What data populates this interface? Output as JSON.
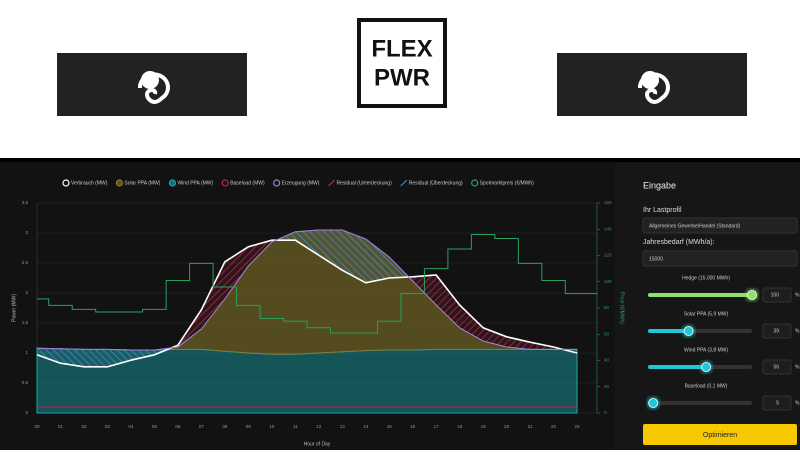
{
  "header": {
    "logo_lines": [
      "FLEX",
      "PWR"
    ]
  },
  "chart_data": {
    "type": "line",
    "x_label": "Hour of Day",
    "y_label": "Power (MW)",
    "y2_label": "Price (€/MWh)",
    "categories": [
      "00",
      "01",
      "02",
      "03",
      "04",
      "05",
      "06",
      "07",
      "08",
      "09",
      "10",
      "11",
      "12",
      "13",
      "14",
      "15",
      "16",
      "17",
      "18",
      "19",
      "20",
      "21",
      "22",
      "23"
    ],
    "ylim": [
      0,
      3.5
    ],
    "yticks": [
      0,
      {
        "value": 0.5,
        "label": "0,5"
      },
      1,
      {
        "value": 1.5,
        "label": "1,5"
      },
      2,
      {
        "value": 2.5,
        "label": "2,5"
      },
      3,
      {
        "value": 3.5,
        "label": "3,5"
      }
    ],
    "y2lim": [
      0,
      160
    ],
    "y2ticks": [
      0,
      20,
      40,
      60,
      80,
      100,
      120,
      140,
      160
    ],
    "grid": true,
    "series": [
      {
        "name": "Verbrauch (MW)",
        "color": "#ffffff",
        "kind": "line",
        "values": [
          0.97,
          0.83,
          0.77,
          0.77,
          0.88,
          0.97,
          1.13,
          1.72,
          2.52,
          2.77,
          2.88,
          2.88,
          2.63,
          2.38,
          2.17,
          2.25,
          2.27,
          2.3,
          1.8,
          1.42,
          1.27,
          1.18,
          1.1,
          1.0
        ]
      },
      {
        "name": "Solar PPA (MW)",
        "color": "#8a7a2a",
        "kind": "stack",
        "values": [
          0,
          0,
          0,
          0,
          0,
          0,
          0.04,
          0.34,
          0.87,
          1.45,
          1.87,
          2.04,
          2.05,
          2.03,
          1.86,
          1.55,
          1.15,
          0.74,
          0.36,
          0.14,
          0.04,
          0,
          0,
          0
        ]
      },
      {
        "name": "Wind PPA (MW)",
        "color": "#1aa8b0",
        "kind": "area",
        "values": [
          1.08,
          1.07,
          1.06,
          1.06,
          1.05,
          1.05,
          1.06,
          1.06,
          1.03,
          1.0,
          0.98,
          0.98,
          1.0,
          1.02,
          1.04,
          1.05,
          1.05,
          1.06,
          1.06,
          1.06,
          1.06,
          1.06,
          1.06,
          1.06
        ]
      },
      {
        "name": "Baseload (MW)",
        "color": "#c0205e",
        "kind": "line",
        "values": [
          0.1,
          0.1,
          0.1,
          0.1,
          0.1,
          0.1,
          0.1,
          0.1,
          0.1,
          0.1,
          0.1,
          0.1,
          0.1,
          0.1,
          0.1,
          0.1,
          0.1,
          0.1,
          0.1,
          0.1,
          0.1,
          0.1,
          0.1,
          0.1
        ]
      },
      {
        "name": "Erzeugung (MW)",
        "color": "#a77ee0",
        "kind": "line",
        "values": [
          1.08,
          1.07,
          1.06,
          1.06,
          1.05,
          1.05,
          1.1,
          1.4,
          1.9,
          2.45,
          2.85,
          3.02,
          3.05,
          3.05,
          2.9,
          2.6,
          2.2,
          1.8,
          1.42,
          1.2,
          1.1,
          1.06,
          1.06,
          1.06
        ]
      },
      {
        "name": "Spotmarktpreis (€/MWh)",
        "color": "#2aa060",
        "kind": "step",
        "axis": "y2",
        "values": [
          87,
          82,
          79,
          77,
          77,
          79,
          101,
          114,
          96,
          82,
          72,
          70,
          65,
          61,
          61,
          70,
          91,
          110,
          125,
          136,
          133,
          114,
          101,
          91
        ]
      }
    ],
    "residuals": [
      {
        "name": "Residual (Unterdeckung)",
        "color": "#c8304e"
      },
      {
        "name": "Residual (Überdeckung)",
        "color": "#4a98d0"
      }
    ]
  },
  "panel": {
    "title": "Eingabe",
    "profile_label": "Ihr Lastprofil",
    "profile_value": "Allgemeines Gewerbe/Handel (Standard)",
    "demand_label": "Jahresbedarf (MWh/a):",
    "demand_value": "15000",
    "sliders": [
      {
        "label": "Hedge (15.000 MWh)",
        "value": 100,
        "unit": "%",
        "color": "#8ee06a"
      },
      {
        "label": "Solar PPA (5,9 MW)",
        "value": 39,
        "unit": "%",
        "color": "#1ec8d8"
      },
      {
        "label": "Wind PPA (3,8 MW)",
        "value": 56,
        "unit": "%",
        "color": "#1ec8d8"
      },
      {
        "label": "Baseload (0,1 MW)",
        "value": 5,
        "unit": "%",
        "color": "#1ec8d8"
      }
    ],
    "button": "Optimieren"
  }
}
